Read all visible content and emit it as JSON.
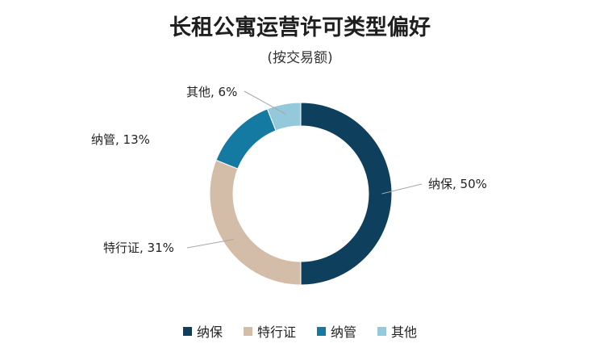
{
  "chart_data": {
    "type": "pie",
    "title": "长租公寓运营许可类型偏好",
    "subtitle": "(按交易额)",
    "donut": true,
    "categories": [
      "纳保",
      "特行证",
      "纳管",
      "其他"
    ],
    "values": [
      50,
      31,
      13,
      6
    ],
    "data_labels": [
      "纳保, 50%",
      "特行证, 31%",
      "纳管, 13%",
      "其他, 6%"
    ],
    "colors": [
      "#0e3f5c",
      "#d3bca8",
      "#157aa2",
      "#93c9da"
    ],
    "legend_position": "bottom"
  }
}
